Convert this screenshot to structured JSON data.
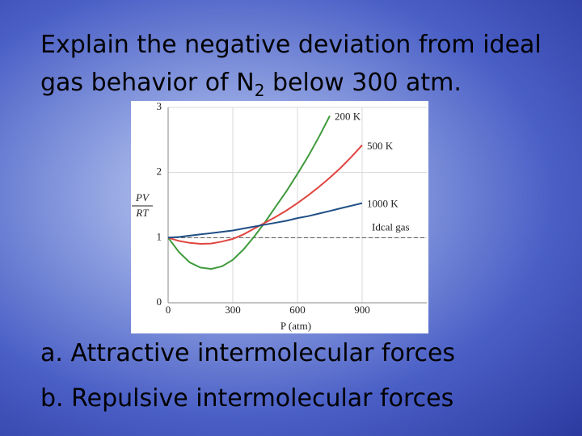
{
  "slide": {
    "title_line1": "Explain the negative deviation from ideal",
    "title_line2_parts": [
      "gas behavior of N",
      "2",
      " below 300 atm."
    ],
    "options": [
      {
        "letter": "a.",
        "text": "Attractive intermolecular forces"
      },
      {
        "letter": "b.",
        "text": "Repulsive intermolecular forces"
      }
    ]
  },
  "chart_data": {
    "type": "line",
    "x_label": "P (atm)",
    "y_label_numerator": "PV",
    "y_label_denominator": "RT",
    "x": [
      0,
      50,
      100,
      150,
      200,
      250,
      300,
      350,
      400,
      450,
      500,
      550,
      600,
      650,
      700,
      750,
      800,
      850,
      900
    ],
    "series": [
      {
        "name": "200 K",
        "color": "#3f9a3c",
        "values": [
          1,
          0.78,
          0.62,
          0.54,
          0.52,
          0.56,
          0.66,
          0.82,
          1.02,
          1.24,
          1.48,
          1.72,
          1.98,
          2.25,
          2.55,
          2.87,
          null,
          null,
          null
        ]
      },
      {
        "name": "500 K",
        "color": "#e0443f",
        "values": [
          1,
          0.95,
          0.92,
          0.905,
          0.91,
          0.94,
          0.98,
          1.05,
          1.14,
          1.23,
          1.32,
          1.42,
          1.53,
          1.65,
          1.78,
          1.92,
          2.07,
          2.24,
          2.42
        ]
      },
      {
        "name": "1000 K",
        "color": "#1f4f86",
        "values": [
          1,
          1.01,
          1.03,
          1.05,
          1.07,
          1.09,
          1.11,
          1.14,
          1.17,
          1.2,
          1.23,
          1.26,
          1.3,
          1.33,
          1.37,
          1.41,
          1.45,
          1.49,
          1.53
        ]
      }
    ],
    "reference_line": {
      "value": 1,
      "label": "Idcal gas"
    },
    "xlim": [
      0,
      1200
    ],
    "ylim": [
      0,
      3
    ],
    "xticks": [
      0,
      300,
      600,
      900
    ],
    "yticks": [
      0,
      1,
      2,
      3
    ],
    "grid": true
  }
}
